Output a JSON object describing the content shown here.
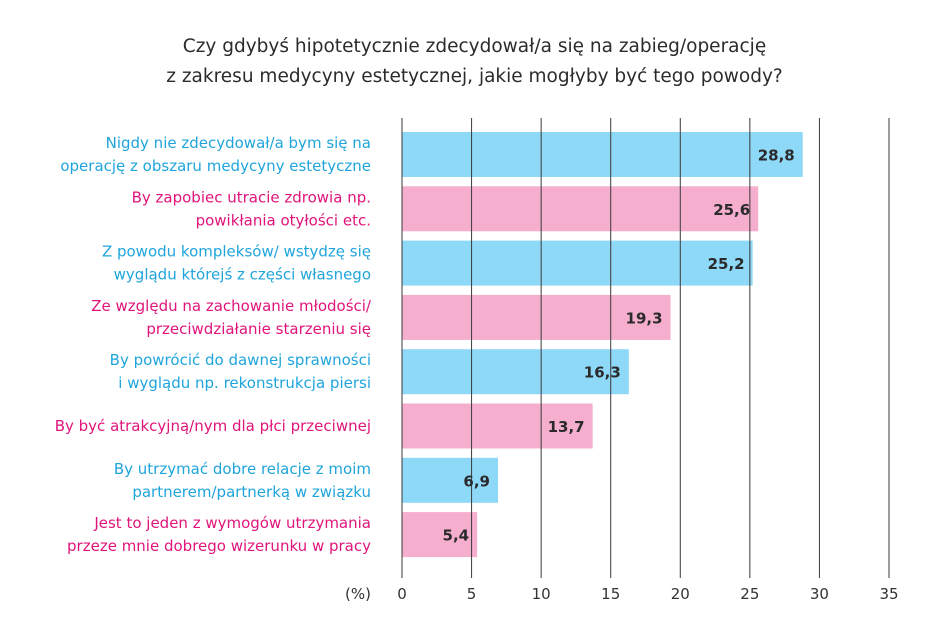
{
  "chart_data": {
    "type": "bar",
    "orientation": "horizontal",
    "title_lines": [
      "Czy gdybyś hipotetycznie zdecydował/a się na zabieg/operację",
      "z zakresu medycyny estetycznej, jakie mogłyby być tego powody?"
    ],
    "unit_label": "(%)",
    "categories": [
      [
        "Nigdy nie zdecydował/a bym się na",
        "operację z obszaru medycyny estetyczne"
      ],
      [
        "By zapobiec utracie zdrowia np.",
        "powikłania otyłości etc."
      ],
      [
        "Z powodu kompleksów/ wstydzę się",
        "wyglądu którejś z części własnego"
      ],
      [
        "Ze względu na zachowanie młodości/",
        "przeciwdziałanie starzeniu się"
      ],
      [
        "By powrócić do dawnej sprawności",
        "i wyglądu np. rekonstrukcja piersi"
      ],
      [
        "By być atrakcyjną/nym dla płci przeciwnej"
      ],
      [
        "By utrzymać dobre relacje z moim",
        "partnerem/partnerką w związku"
      ],
      [
        "Jest to jeden z wymogów utrzymania",
        "przeze mnie dobrego wizerunku w pracy"
      ]
    ],
    "values": [
      28.8,
      25.6,
      25.2,
      19.3,
      16.3,
      13.7,
      6.9,
      5.4
    ],
    "value_labels": [
      "28,8",
      "25,6",
      "25,2",
      "19,3",
      "16,3",
      "13,7",
      "6,9",
      "5,4"
    ],
    "xlim": [
      0,
      35
    ],
    "xticks": [
      0,
      5,
      10,
      15,
      20,
      25,
      30,
      35
    ],
    "grid": true,
    "colors": {
      "blue_bar": "#8ed8f8",
      "pink_bar": "#f5aece",
      "blue_text": "#1fa5dc",
      "pink_text": "#e0147a",
      "grid": "#3a3a3a",
      "value_text": "#2a2a2a",
      "axis_text": "#333333"
    },
    "bar_colors": [
      "blue",
      "pink",
      "blue",
      "pink",
      "blue",
      "pink",
      "blue",
      "pink"
    ]
  }
}
